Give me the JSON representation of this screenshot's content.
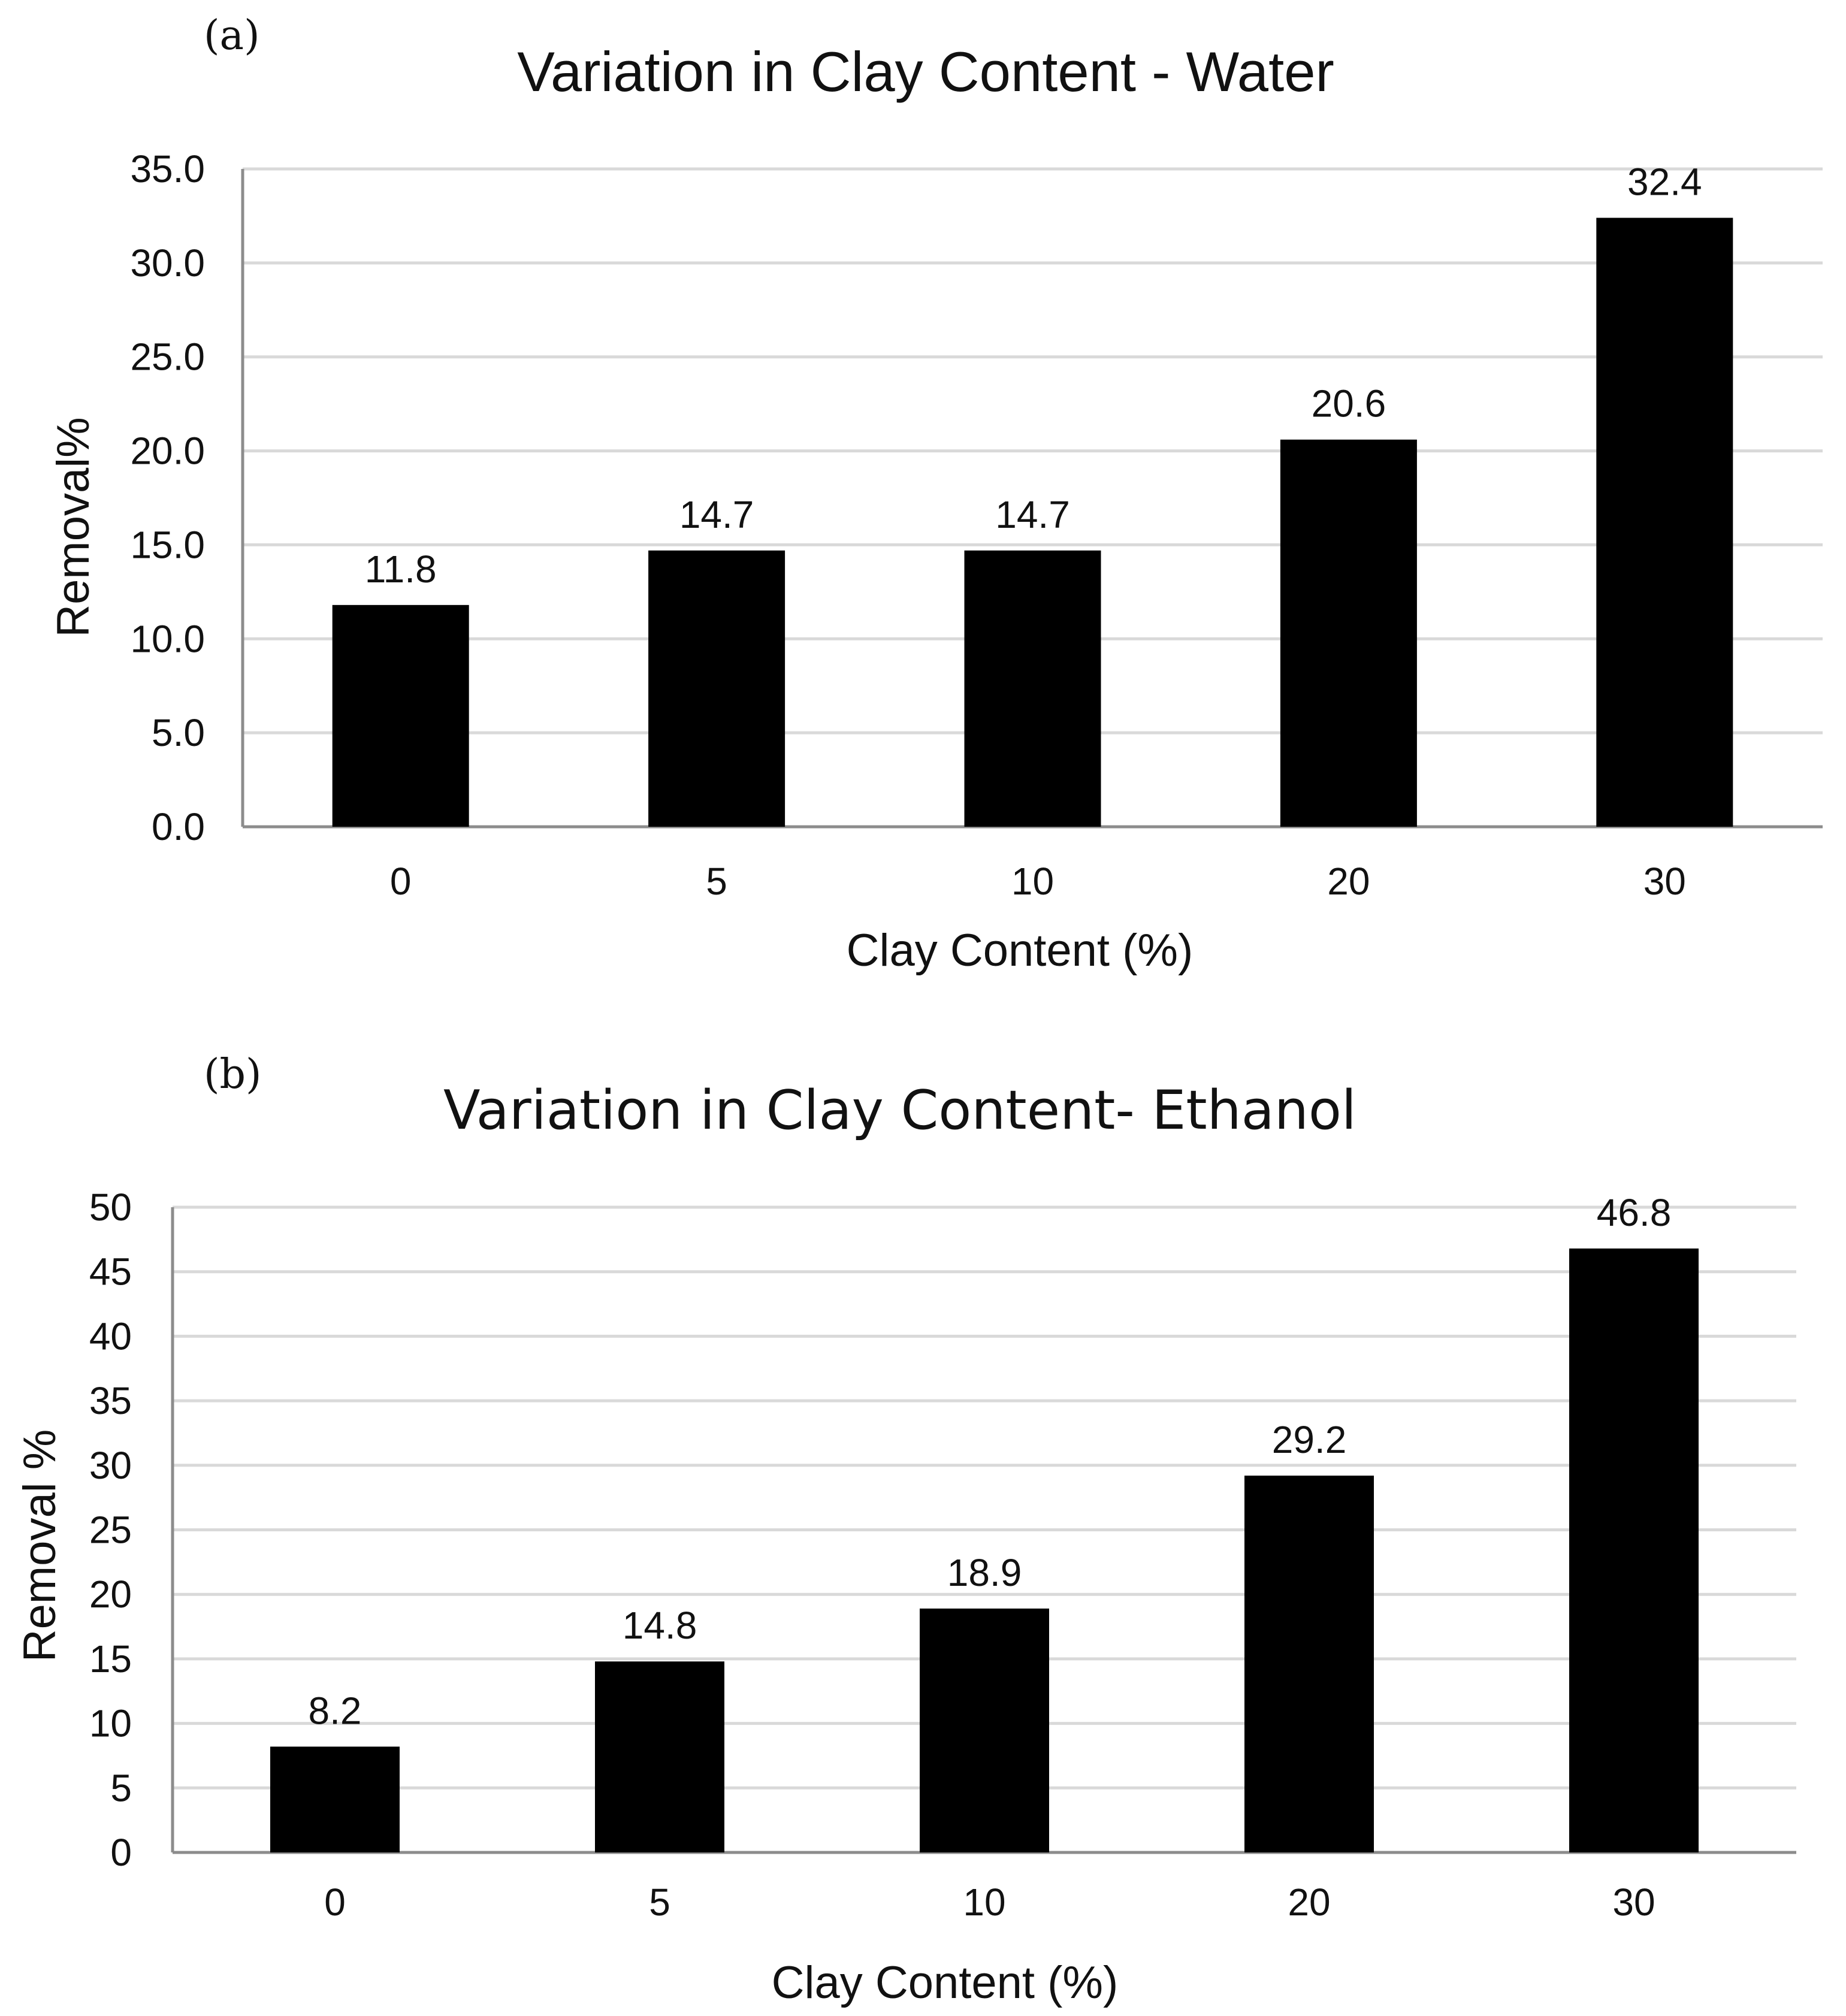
{
  "chart_data": [
    {
      "type": "bar",
      "panel_label": "(a)",
      "title": "Variation in Clay Content - Water",
      "xlabel": "Clay Content (%)",
      "ylabel": "Removal%",
      "categories": [
        "0",
        "5",
        "10",
        "20",
        "30"
      ],
      "values": [
        11.8,
        14.7,
        14.7,
        20.6,
        32.4
      ],
      "data_labels": [
        "11.8",
        "14.7",
        "14.7",
        "20.6",
        "32.4"
      ],
      "ylim": [
        0,
        35
      ],
      "yticks": [
        "0.0",
        "5.0",
        "10.0",
        "15.0",
        "20.0",
        "25.0",
        "30.0",
        "35.0"
      ],
      "grid": true,
      "color": "#000000"
    },
    {
      "type": "bar",
      "panel_label": "(b)",
      "title": "Variation in Clay Content- Ethanol",
      "xlabel": "Clay Content (%)",
      "ylabel": "Removal %",
      "categories": [
        "0",
        "5",
        "10",
        "20",
        "30"
      ],
      "values": [
        8.2,
        14.8,
        18.9,
        29.2,
        46.8
      ],
      "data_labels": [
        "8.2",
        "14.8",
        "18.9",
        "29.2",
        "46.8"
      ],
      "ylim": [
        0,
        50
      ],
      "yticks": [
        "0",
        "5",
        "10",
        "15",
        "20",
        "25",
        "30",
        "35",
        "40",
        "45",
        "50"
      ],
      "grid": true,
      "color": "#000000"
    }
  ]
}
